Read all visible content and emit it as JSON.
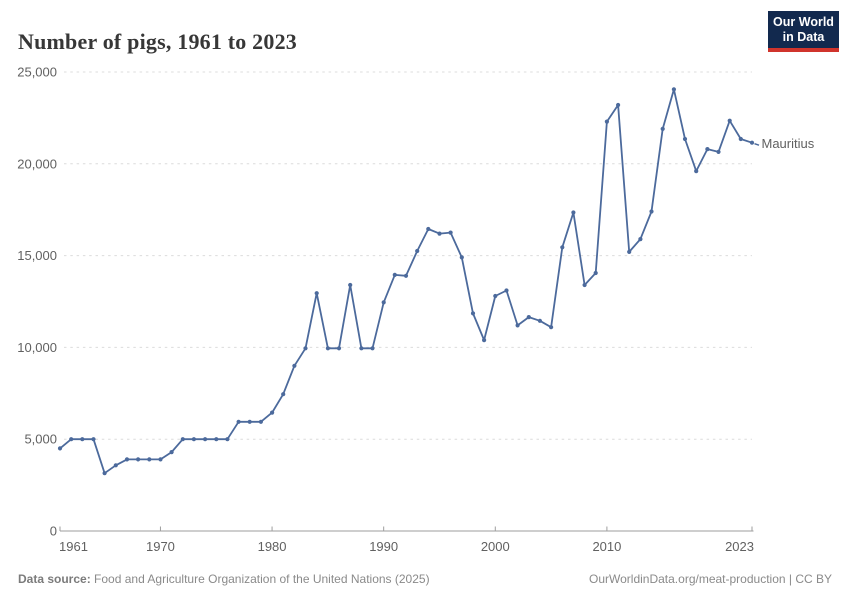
{
  "header": {
    "title": "Number of pigs, 1961 to 2023",
    "logo_line1": "Our World",
    "logo_line2": "in Data"
  },
  "chart_data": {
    "type": "line",
    "title": "Number of pigs, 1961 to 2023",
    "x": [
      1961,
      1962,
      1963,
      1964,
      1965,
      1966,
      1967,
      1968,
      1969,
      1970,
      1971,
      1972,
      1973,
      1974,
      1975,
      1976,
      1977,
      1978,
      1979,
      1980,
      1981,
      1982,
      1983,
      1984,
      1985,
      1986,
      1987,
      1988,
      1989,
      1990,
      1991,
      1992,
      1993,
      1994,
      1995,
      1996,
      1997,
      1998,
      1999,
      2000,
      2001,
      2002,
      2003,
      2004,
      2005,
      2006,
      2007,
      2008,
      2009,
      2010,
      2011,
      2012,
      2013,
      2014,
      2015,
      2016,
      2017,
      2018,
      2019,
      2020,
      2021,
      2022,
      2023
    ],
    "series": [
      {
        "name": "Mauritius",
        "values": [
          4500,
          5000,
          5000,
          5000,
          3150,
          3580,
          3900,
          3900,
          3900,
          3900,
          4300,
          5000,
          5000,
          5000,
          5000,
          5000,
          5950,
          5950,
          5950,
          6450,
          7450,
          9000,
          9950,
          12950,
          9950,
          9950,
          13400,
          9950,
          9950,
          12450,
          13950,
          13900,
          15250,
          16450,
          16200,
          16250,
          14900,
          11850,
          10400,
          12800,
          13100,
          11200,
          11650,
          11450,
          11100,
          15450,
          17350,
          13400,
          14050,
          22300,
          23200,
          15200,
          15900,
          17400,
          21900,
          24050,
          21350,
          19600,
          20800,
          20650,
          22350,
          21350,
          21150
        ]
      }
    ],
    "xlabel": "",
    "ylabel": "",
    "ylim": [
      0,
      25000
    ],
    "yticks": [
      0,
      5000,
      10000,
      15000,
      20000,
      25000
    ],
    "ytick_labels": [
      "0",
      "5,000",
      "10,000",
      "15,000",
      "20,000",
      "25,000"
    ],
    "xticks": [
      1961,
      1970,
      1980,
      1990,
      2000,
      2010,
      2023
    ],
    "grid": "horizontal-dashed",
    "legend_position": "end-of-line-label",
    "line_color": "#4C6A9C",
    "grid_color": "#dcdcdc",
    "axis_color": "#9e9e9e",
    "tick_label_color": "#616161"
  },
  "footer": {
    "source_label": "Data source:",
    "source_text": " Food and Agriculture Organization of the United Nations (2025)",
    "credit": "OurWorldinData.org/meat-production | CC BY"
  },
  "colors": {
    "series_line": "#4C6A9C",
    "logo_background": "#12294E",
    "logo_accent_bar": "#D0342C",
    "title_text": "#373737",
    "footer_text": "#8a8a8a"
  }
}
